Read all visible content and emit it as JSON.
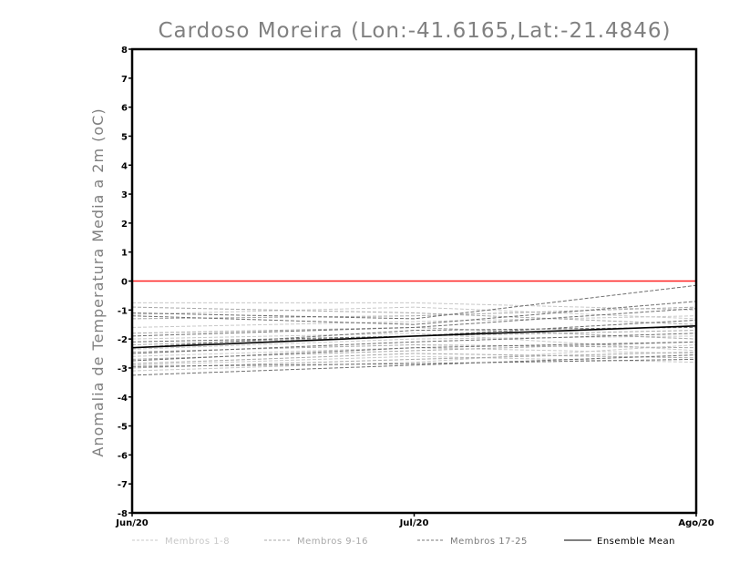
{
  "chart_data": {
    "type": "line",
    "title": "Cardoso Moreira (Lon:-41.6165,Lat:-21.4846)",
    "xlabel": "",
    "ylabel": "Anomalia de Temperatura Media a 2m (oC)",
    "x": [
      "Jun/20",
      "Jul/20",
      "Ago/20"
    ],
    "ylim": [
      -8,
      8
    ],
    "yticks": [
      8,
      7,
      6,
      5,
      4,
      3,
      2,
      1,
      0,
      -1,
      -2,
      -3,
      -4,
      -5,
      -6,
      -7,
      -8
    ],
    "ytick_labels": [
      "8",
      "7",
      "6",
      "5",
      "4",
      "3",
      "2",
      "1",
      "0",
      "-1",
      "-2",
      "-3",
      "-4",
      "-5",
      "-6",
      "-7",
      "-8"
    ],
    "grid": false,
    "reference_line": {
      "y": 0,
      "color": "#ff2020"
    },
    "legend_position": "bottom",
    "legend": [
      {
        "label": "Membros 1-8",
        "color": "#c8c8c8",
        "style": "dashed"
      },
      {
        "label": "Membros 9-16",
        "color": "#a8a8a8",
        "style": "dashed"
      },
      {
        "label": "Membros 17-25",
        "color": "#7a7a7a",
        "style": "dashed"
      },
      {
        "label": "Ensemble Mean",
        "color": "#000000",
        "style": "solid"
      }
    ],
    "groups": [
      {
        "name": "Membros 1-8",
        "color": "#c8c8c8",
        "series": [
          {
            "name": "Membro 1",
            "values": [
              -0.75,
              -0.75,
              -1.0
            ]
          },
          {
            "name": "Membro 2",
            "values": [
              -1.15,
              -0.9,
              -1.3
            ]
          },
          {
            "name": "Membro 3",
            "values": [
              -1.6,
              -1.4,
              -1.2
            ]
          },
          {
            "name": "Membro 4",
            "values": [
              -2.0,
              -1.8,
              -2.4
            ]
          },
          {
            "name": "Membro 5",
            "values": [
              -2.35,
              -2.0,
              -1.9
            ]
          },
          {
            "name": "Membro 6",
            "values": [
              -2.6,
              -2.3,
              -2.5
            ]
          },
          {
            "name": "Membro 7",
            "values": [
              -2.9,
              -2.6,
              -2.8
            ]
          },
          {
            "name": "Membro 8",
            "values": [
              -3.1,
              -2.8,
              -2.2
            ]
          }
        ]
      },
      {
        "name": "Membros 9-16",
        "color": "#a8a8a8",
        "series": [
          {
            "name": "Membro 9",
            "values": [
              -0.9,
              -1.1,
              -1.5
            ]
          },
          {
            "name": "Membro 10",
            "values": [
              -1.3,
              -1.2,
              -0.9
            ]
          },
          {
            "name": "Membro 11",
            "values": [
              -1.8,
              -1.6,
              -2.0
            ]
          },
          {
            "name": "Membro 12",
            "values": [
              -2.2,
              -1.9,
              -1.7
            ]
          },
          {
            "name": "Membro 13",
            "values": [
              -2.45,
              -2.2,
              -2.3
            ]
          },
          {
            "name": "Membro 14",
            "values": [
              -2.7,
              -2.4,
              -2.1
            ]
          },
          {
            "name": "Membro 15",
            "values": [
              -2.85,
              -2.5,
              -2.65
            ]
          },
          {
            "name": "Membro 16",
            "values": [
              -3.0,
              -2.7,
              -2.45
            ]
          }
        ]
      },
      {
        "name": "Membros 17-25",
        "color": "#6e6e6e",
        "series": [
          {
            "name": "Membro 17",
            "values": [
              -1.1,
              -1.3,
              -0.15
            ]
          },
          {
            "name": "Membro 18",
            "values": [
              -1.2,
              -1.5,
              -0.7
            ]
          },
          {
            "name": "Membro 19",
            "values": [
              -1.9,
              -1.6,
              -0.95
            ]
          },
          {
            "name": "Membro 20",
            "values": [
              -2.1,
              -1.9,
              -1.35
            ]
          },
          {
            "name": "Membro 21",
            "values": [
              -2.3,
              -1.7,
              -1.6
            ]
          },
          {
            "name": "Membro 22",
            "values": [
              -2.5,
              -2.1,
              -1.8
            ]
          },
          {
            "name": "Membro 23",
            "values": [
              -2.75,
              -2.3,
              -2.1
            ]
          },
          {
            "name": "Membro 24",
            "values": [
              -2.95,
              -2.85,
              -2.7
            ]
          },
          {
            "name": "Membro 25",
            "values": [
              -3.25,
              -2.9,
              -2.55
            ]
          }
        ]
      }
    ],
    "ensemble_mean": {
      "name": "Ensemble Mean",
      "color": "#000000",
      "values": [
        -2.3,
        -1.9,
        -1.55
      ]
    }
  }
}
